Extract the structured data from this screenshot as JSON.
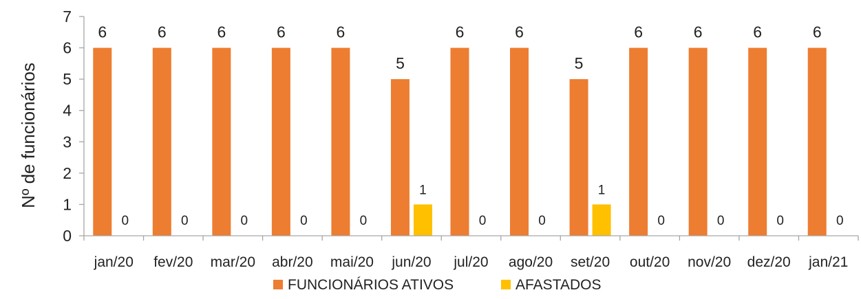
{
  "chart_data": {
    "type": "bar",
    "title": "",
    "xlabel": "",
    "ylabel": "Nº de funcionários",
    "ylim": [
      0,
      7
    ],
    "yticks": [
      "0",
      "1",
      "2",
      "3",
      "4",
      "5",
      "6",
      "7"
    ],
    "grid": false,
    "legend_position": "bottom",
    "categories": [
      "jan/20",
      "fev/20",
      "mar/20",
      "abr/20",
      "mai/20",
      "jun/20",
      "jul/20",
      "ago/20",
      "set/20",
      "out/20",
      "nov/20",
      "dez/20",
      "jan/21"
    ],
    "series": [
      {
        "name": "FUNCIONÁRIOS ATIVOS",
        "color": "#ED7D31",
        "values": [
          6,
          6,
          6,
          6,
          6,
          5,
          6,
          6,
          5,
          6,
          6,
          6,
          6
        ]
      },
      {
        "name": "AFASTADOS",
        "color": "#FFC000",
        "values": [
          0,
          0,
          0,
          0,
          0,
          1,
          0,
          0,
          1,
          0,
          0,
          0,
          0
        ]
      }
    ]
  }
}
